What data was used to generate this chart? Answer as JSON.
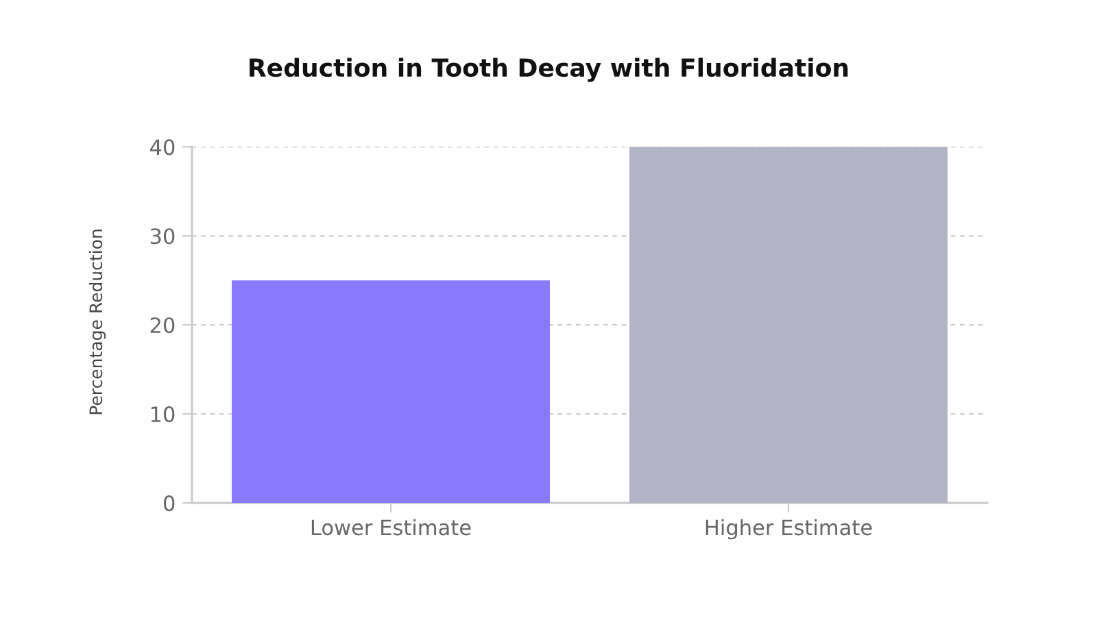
{
  "chart_data": {
    "type": "bar",
    "title": "Reduction in Tooth Decay with Fluoridation",
    "ylabel": "Percentage Reduction",
    "categories": [
      "Lower Estimate",
      "Higher Estimate"
    ],
    "values": [
      25,
      40
    ],
    "colors": [
      "#8979ff",
      "#b3b3c6"
    ],
    "ylim": [
      0,
      40
    ],
    "yticks": [
      0,
      10,
      20,
      30,
      40
    ],
    "grid": "y",
    "legend": false
  }
}
